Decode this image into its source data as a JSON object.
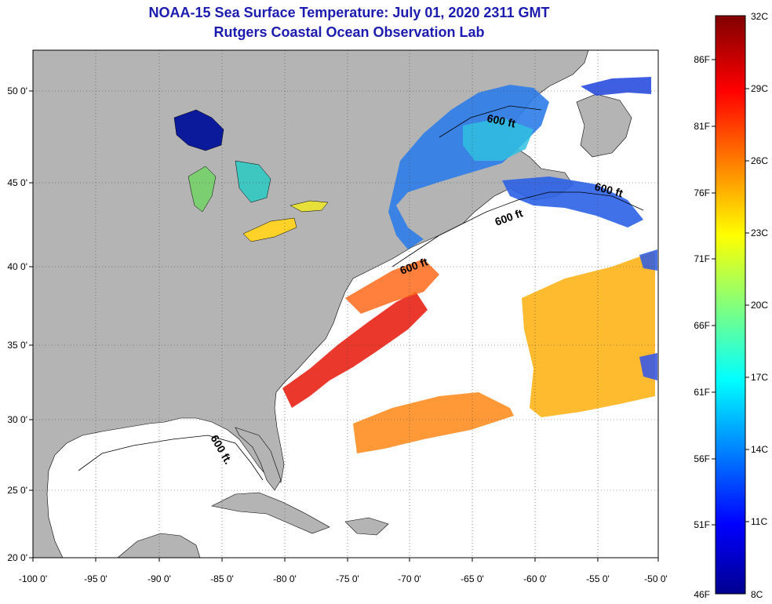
{
  "header": {
    "title": "NOAA-15 Sea Surface Temperature:  July 01, 2020 2311 GMT",
    "subtitle": "Rutgers Coastal Ocean Observation Lab"
  },
  "map": {
    "lon_ticks": [
      "-100 0'",
      "-95 0'",
      "-90 0'",
      "-85 0'",
      "-80 0'",
      "-75 0'",
      "-70 0'",
      "-65 0'",
      "-60 0'",
      "-55 0'",
      "-50 0'"
    ],
    "lat_ticks": [
      "50 0'",
      "45 0'",
      "40 0'",
      "35 0'",
      "30 0'",
      "25 0'",
      "20 0'"
    ],
    "contour_labels": [
      "600 ft",
      "600 ft",
      "600 ft",
      "600 ft",
      "600 ft."
    ],
    "colors": {
      "land": "#b4b4b4",
      "ocean_nodata": "#ffffff"
    }
  },
  "colorbar": {
    "celsius_labels": [
      "32C",
      "29C",
      "26C",
      "23C",
      "20C",
      "17C",
      "14C",
      "11C",
      "8C"
    ],
    "fahrenheit_labels": [
      "86F",
      "81F",
      "76F",
      "71F",
      "66F",
      "61F",
      "56F",
      "51F",
      "46F"
    ],
    "range_c": [
      8,
      32
    ],
    "colormap": "jet"
  }
}
